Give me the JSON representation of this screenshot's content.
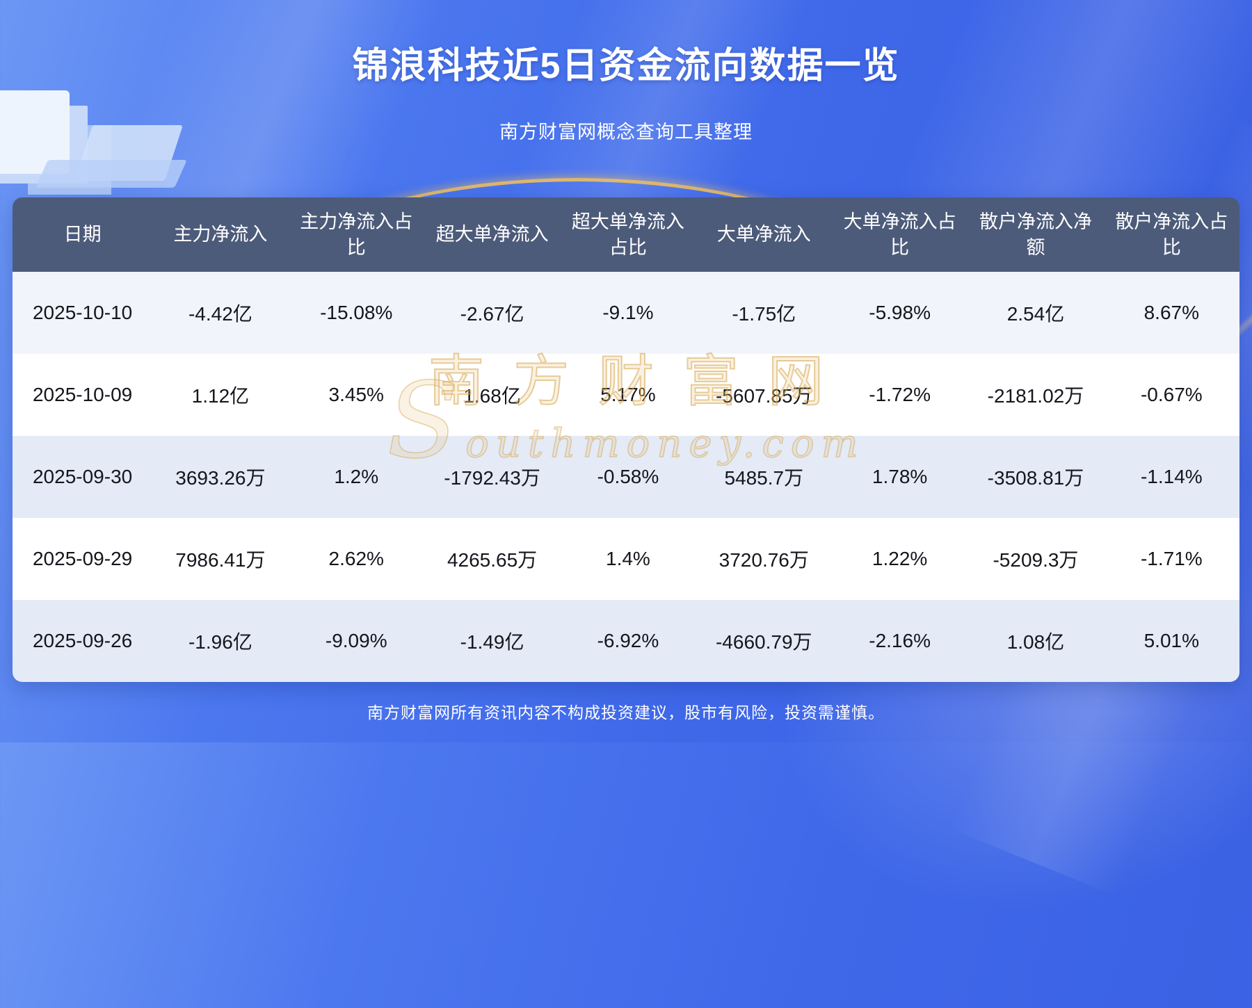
{
  "page": {
    "title": "锦浪科技近5日资金流向数据一览",
    "subtitle": "南方财富网概念查询工具整理",
    "footer": "南方财富网所有资讯内容不构成投资建议，股市有风险，投资需谨慎。"
  },
  "watermark": {
    "cn": "南方财富网",
    "en": "Southmoney.com"
  },
  "colors": {
    "header_bg": "#4d5b7a",
    "row_alt": "#e4eaf6",
    "row_first": "#f2f4fb",
    "accent_gold": "#ecbe60",
    "background_blue": "#3f68e9"
  },
  "chart_data": {
    "type": "table",
    "title": "锦浪科技近5日资金流向数据一览",
    "columns": [
      "日期",
      "主力净流入",
      "主力净流入占比",
      "超大单净流入",
      "超大单净流入占比",
      "大单净流入",
      "大单净流入占比",
      "散户净流入净额",
      "散户净流入占比"
    ],
    "rows": [
      [
        "2025-10-10",
        "-4.42亿",
        "-15.08%",
        "-2.67亿",
        "-9.1%",
        "-1.75亿",
        "-5.98%",
        "2.54亿",
        "8.67%"
      ],
      [
        "2025-10-09",
        "1.12亿",
        "3.45%",
        "1.68亿",
        "5.17%",
        "-5607.85万",
        "-1.72%",
        "-2181.02万",
        "-0.67%"
      ],
      [
        "2025-09-30",
        "3693.26万",
        "1.2%",
        "-1792.43万",
        "-0.58%",
        "5485.7万",
        "1.78%",
        "-3508.81万",
        "-1.14%"
      ],
      [
        "2025-09-29",
        "7986.41万",
        "2.62%",
        "4265.65万",
        "1.4%",
        "3720.76万",
        "1.22%",
        "-5209.3万",
        "-1.71%"
      ],
      [
        "2025-09-26",
        "-1.96亿",
        "-9.09%",
        "-1.49亿",
        "-6.92%",
        "-4660.79万",
        "-2.16%",
        "1.08亿",
        "5.01%"
      ]
    ]
  }
}
